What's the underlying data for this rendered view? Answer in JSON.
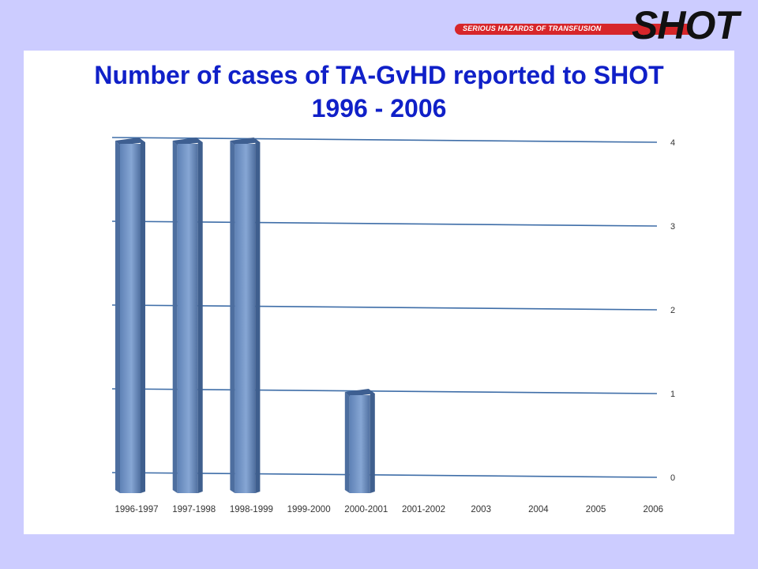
{
  "logo": {
    "tagline": "SERIOUS HAZARDS OF TRANSFUSION",
    "wordmark": "SHOT",
    "colors": {
      "bar": "#d7262a",
      "wordmark": "#111111"
    }
  },
  "chart_data": {
    "type": "bar",
    "title": "Number of cases of TA-GvHD reported to SHOT",
    "subtitle": "1996 - 2006",
    "xlabel": "",
    "ylabel": "",
    "categories": [
      "1996-1997",
      "1997-1998",
      "1998-1999",
      "1999-2000",
      "2000-2001",
      "2001-2002",
      "2003",
      "2004",
      "2005",
      "2006"
    ],
    "values": [
      4,
      4,
      4,
      0,
      1,
      0,
      0,
      0,
      0,
      0
    ],
    "ylim": [
      0,
      4
    ],
    "yticks": [
      "0",
      "1",
      "2",
      "3",
      "4"
    ],
    "y_axis_side": "right",
    "grid": true,
    "bar_color": "#6f93c6",
    "title_color": "#1020c8",
    "legend": "none"
  }
}
